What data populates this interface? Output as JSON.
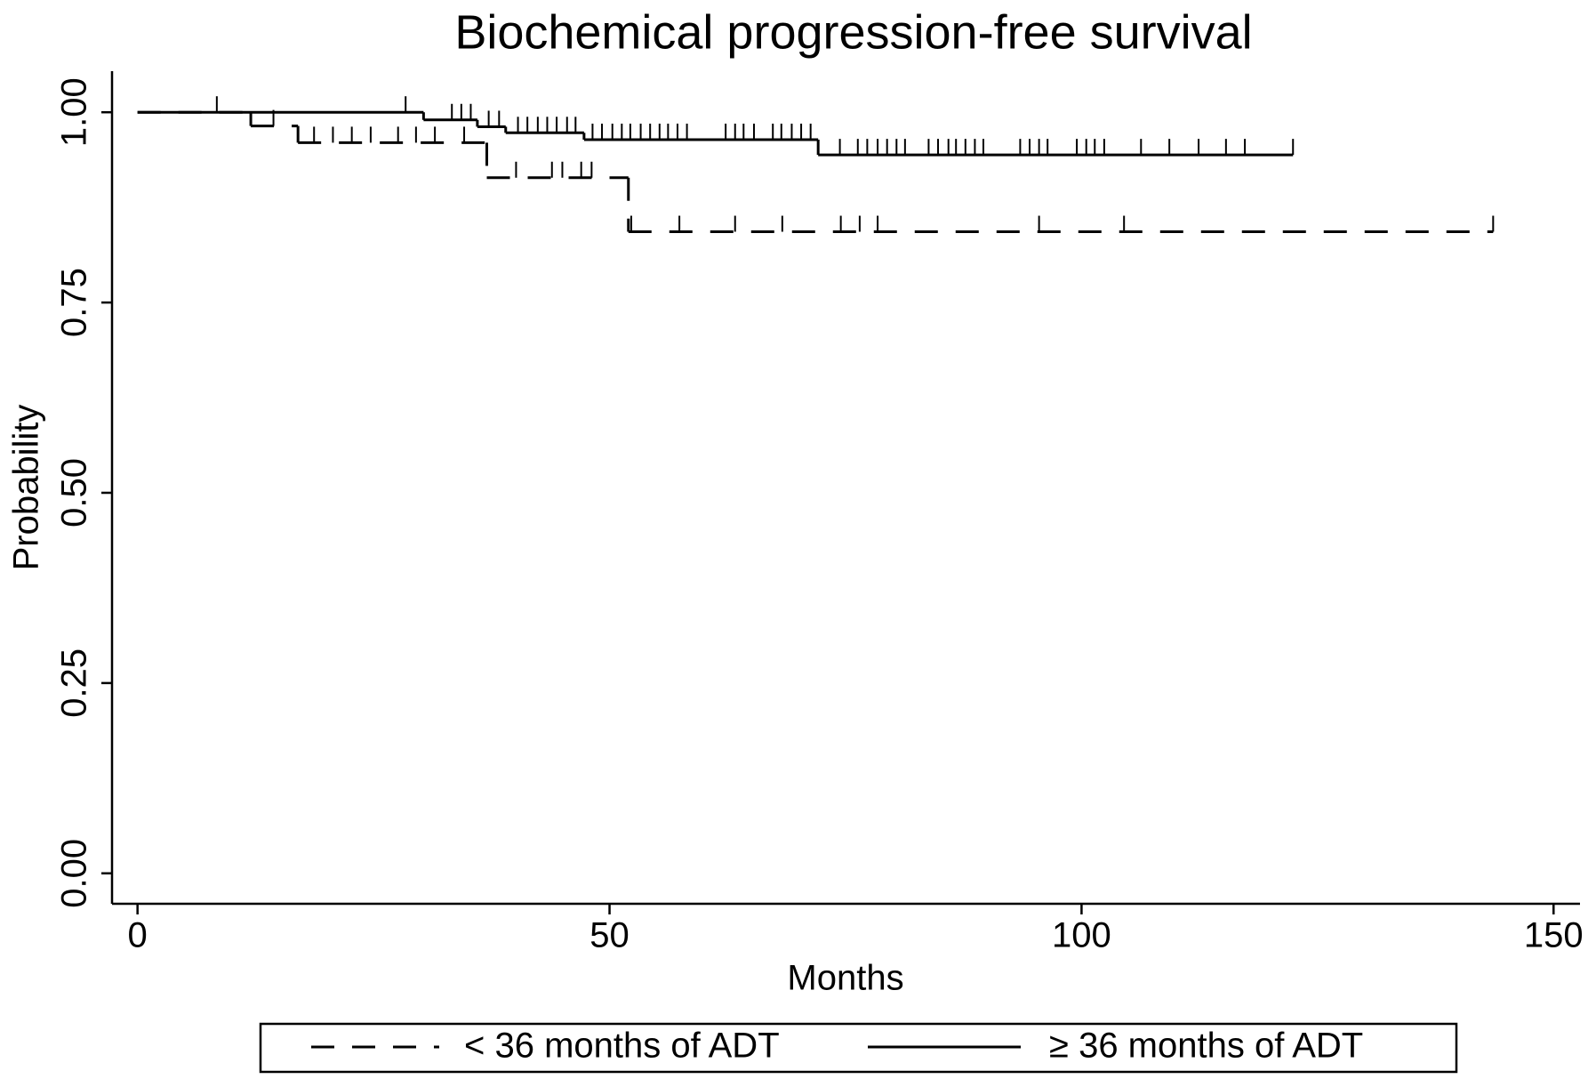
{
  "chart_data": {
    "type": "step",
    "title": "Biochemical progression-free survival",
    "x_label": "Months",
    "y_label": "Probability",
    "xlim": [
      -2.7,
      152.8
    ],
    "ylim": [
      -0.04,
      1.054
    ],
    "xticks": [
      0,
      50,
      100,
      150
    ],
    "yticks": [
      {
        "value": 0,
        "label": "0.00"
      },
      {
        "value": 0.25,
        "label": "0.25"
      },
      {
        "value": 0.5,
        "label": "0.50"
      },
      {
        "value": 0.75,
        "label": "0.75"
      },
      {
        "value": 1,
        "label": "1.00"
      }
    ],
    "legend": "bottom",
    "series": [
      {
        "name": "< 36 months of ADT",
        "color": "#000000",
        "line_style": "dashed",
        "x": [
          0,
          12,
          17,
          37,
          52,
          143.6
        ],
        "values": [
          1,
          0.982,
          0.96,
          0.914,
          0.843,
          0.843
        ],
        "censored": [
          14.4,
          18.7,
          20.7,
          22.7,
          24.7,
          27.6,
          29.5,
          31.5,
          34.6,
          40.1,
          43.9,
          45.0,
          47.0,
          48.1,
          52.3,
          57.4,
          63.3,
          68.3,
          74.5,
          76.5,
          78.4,
          95.5,
          104.5,
          143.6
        ]
      },
      {
        "name": "≥ 36 months of ADT",
        "color": "#000000",
        "line_style": "solid",
        "x": [
          0,
          30.3,
          36,
          39,
          47.3,
          72.1,
          122.4
        ],
        "values": [
          1,
          0.99,
          0.981,
          0.973,
          0.964,
          0.944,
          0.944
        ],
        "censored": [
          8.4,
          28.4,
          33.3,
          34.3,
          35.3,
          37.2,
          38.3,
          40.3,
          41.3,
          42.4,
          43.4,
          44.4,
          45.5,
          46.4,
          48.2,
          49.2,
          50.3,
          51.3,
          52.2,
          53.3,
          54.3,
          55.3,
          56.2,
          57.2,
          58.2,
          62.3,
          63.3,
          64.2,
          65.3,
          67.3,
          68.2,
          69.3,
          70.3,
          71.3,
          74.4,
          76.3,
          77.3,
          78.4,
          79.4,
          80.4,
          81.3,
          83.8,
          84.8,
          85.9,
          86.7,
          87.7,
          88.7,
          89.6,
          93.5,
          94.5,
          95.5,
          96.4,
          99.5,
          100.5,
          101.4,
          102.4,
          106.3,
          109.3,
          112.4,
          115.3,
          117.3,
          122.4
        ]
      }
    ]
  }
}
